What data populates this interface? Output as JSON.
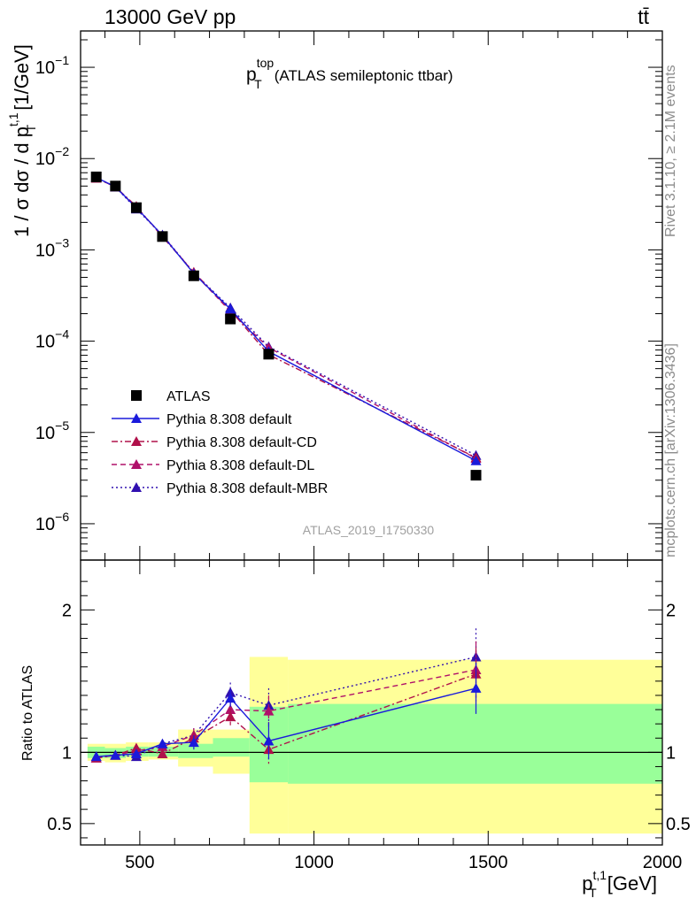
{
  "header": {
    "left": "13000 GeV pp",
    "right": "tt̄"
  },
  "title": {
    "p": "p",
    "sup": "top",
    "sub": "T",
    "rest": "(ATLAS semileptonic ttbar)"
  },
  "watermark": "ATLAS_2019_I1750330",
  "side_labels": {
    "rivet": "Rivet 3.1.10, ≥ 2.1M events",
    "mcplots": "mcplots.cern.ch [arXiv:1306.3436]"
  },
  "ylabel_main": {
    "a": "1 / σ dσ / d p",
    "sup": "t,1",
    "sub": "T",
    "unit": " [1/GeV]"
  },
  "ylabel_ratio": "Ratio to ATLAS",
  "xlabel": {
    "p": "p",
    "sup": "t,1",
    "sub": "T",
    "unit": " [GeV]"
  },
  "legend": [
    "ATLAS",
    "Pythia 8.308 default",
    "Pythia 8.308 default-CD",
    "Pythia 8.308 default-DL",
    "Pythia 8.308 default-MBR"
  ],
  "colors": {
    "data": "#000000",
    "default": "#1a1adb",
    "cd": "#b0104a",
    "dl": "#b0106a",
    "mbr": "#3010b0",
    "band_inner": "#99ff99",
    "band_outer": "#ffff99"
  },
  "chart_data": {
    "type": "line",
    "x_range": [
      330,
      2000
    ],
    "y_main_range": [
      4e-07,
      0.25
    ],
    "y_main_scale": "log",
    "y_ratio_range": [
      0.35,
      2.35
    ],
    "x_ticks": [
      500,
      1000,
      1500,
      2000
    ],
    "y_main_ticks": [
      "10^-6",
      "10^-5",
      "10^-4",
      "10^-3",
      "10^-2",
      "10^-1"
    ],
    "y_ratio_ticks": [
      0.5,
      1,
      2
    ],
    "x": [
      375,
      430,
      490,
      565,
      655,
      760,
      870,
      1465
    ],
    "data": {
      "name": "ATLAS",
      "values": [
        0.0063,
        0.005,
        0.0029,
        0.0014,
        0.00052,
        0.000175,
        7.2e-05,
        3.4e-06
      ]
    },
    "series": [
      {
        "name": "Pythia 8.308 default",
        "values": [
          0.0062,
          0.0049,
          0.0029,
          0.00144,
          0.00055,
          0.000225,
          7.7e-05,
          4.9e-06
        ],
        "ratio": [
          0.97,
          0.98,
          0.99,
          1.06,
          1.07,
          1.38,
          1.08,
          1.45
        ],
        "ratio_err": [
          0.02,
          0.02,
          0.03,
          0.03,
          0.05,
          0.06,
          0.13,
          0.18
        ]
      },
      {
        "name": "Pythia 8.308 default-CD",
        "values": [
          0.0061,
          0.0049,
          0.003,
          0.00139,
          0.00057,
          0.000218,
          7.1e-05,
          5.3e-06
        ],
        "ratio": [
          0.96,
          0.98,
          1.03,
          0.99,
          1.1,
          1.25,
          1.02,
          1.55
        ],
        "ratio_err": [
          0.02,
          0.02,
          0.03,
          0.03,
          0.05,
          0.06,
          0.1,
          0.19
        ]
      },
      {
        "name": "Pythia 8.308 default-DL",
        "values": [
          0.0061,
          0.0049,
          0.0029,
          0.00144,
          0.00056,
          0.000212,
          8.5e-05,
          5.2e-06
        ],
        "ratio": [
          0.96,
          0.98,
          1.01,
          1.04,
          1.12,
          1.3,
          1.29,
          1.58
        ],
        "ratio_err": [
          0.02,
          0.02,
          0.03,
          0.03,
          0.05,
          0.06,
          0.11,
          0.2
        ]
      },
      {
        "name": "Pythia 8.308 default-MBR",
        "values": [
          0.0062,
          0.0049,
          0.0028,
          0.00146,
          0.00056,
          0.000232,
          8.7e-05,
          5.6e-06
        ],
        "ratio": [
          0.97,
          0.98,
          0.97,
          1.06,
          1.12,
          1.42,
          1.33,
          1.67
        ],
        "ratio_err": [
          0.02,
          0.02,
          0.03,
          0.03,
          0.05,
          0.07,
          0.12,
          0.2
        ]
      }
    ],
    "bands": {
      "bins": [
        [
          350,
          400
        ],
        [
          400,
          460
        ],
        [
          460,
          525
        ],
        [
          525,
          610
        ],
        [
          610,
          710
        ],
        [
          710,
          815
        ],
        [
          815,
          925
        ],
        [
          925,
          2000
        ]
      ],
      "inner": [
        [
          0.96,
          1.04
        ],
        [
          0.96,
          1.03
        ],
        [
          0.97,
          1.04
        ],
        [
          0.97,
          1.04
        ],
        [
          0.96,
          1.06
        ],
        [
          0.97,
          1.1
        ],
        [
          0.79,
          1.32
        ],
        [
          0.78,
          1.34
        ]
      ],
      "outer": [
        [
          0.94,
          1.06
        ],
        [
          0.93,
          1.06
        ],
        [
          0.94,
          1.07
        ],
        [
          0.95,
          1.07
        ],
        [
          0.9,
          1.16
        ],
        [
          0.85,
          1.16
        ],
        [
          0.43,
          1.67
        ],
        [
          0.43,
          1.65
        ]
      ]
    }
  }
}
